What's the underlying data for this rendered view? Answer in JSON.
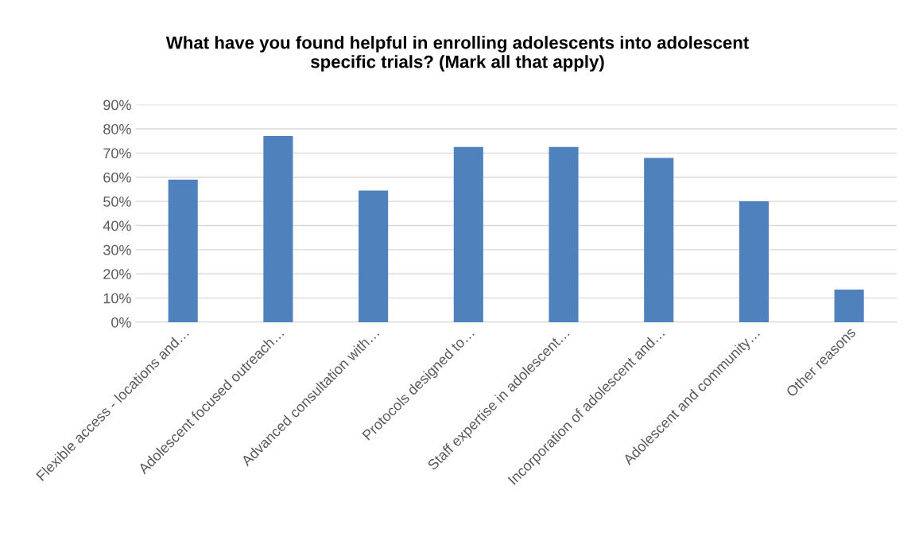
{
  "chart_data": {
    "type": "bar",
    "title": "What have you found helpful in enrolling adolescents into adolescent\nspecific trials? (Mark all that apply)",
    "categories": [
      "Flexible access - locations and…",
      "Adolescent focused outreach…",
      "Advanced consultation with…",
      "Protocols designed to…",
      "Staff expertise in adolescent…",
      "Incorporation of adolescent and…",
      "Adolescent and community…",
      "Other reasons"
    ],
    "values": [
      59,
      77,
      54.5,
      72.5,
      72.5,
      68,
      50,
      13.5
    ],
    "color": "#4f81bd",
    "ylim": [
      0,
      90
    ],
    "yticks": [
      {
        "value": 0,
        "label": "0%"
      },
      {
        "value": 10,
        "label": "10%"
      },
      {
        "value": 20,
        "label": "20%"
      },
      {
        "value": 30,
        "label": "30%"
      },
      {
        "value": 40,
        "label": "40%"
      },
      {
        "value": 50,
        "label": "50%"
      },
      {
        "value": 60,
        "label": "60%"
      },
      {
        "value": 70,
        "label": "70%"
      },
      {
        "value": 80,
        "label": "80%"
      },
      {
        "value": 90,
        "label": "90%"
      }
    ],
    "grid": "y"
  }
}
